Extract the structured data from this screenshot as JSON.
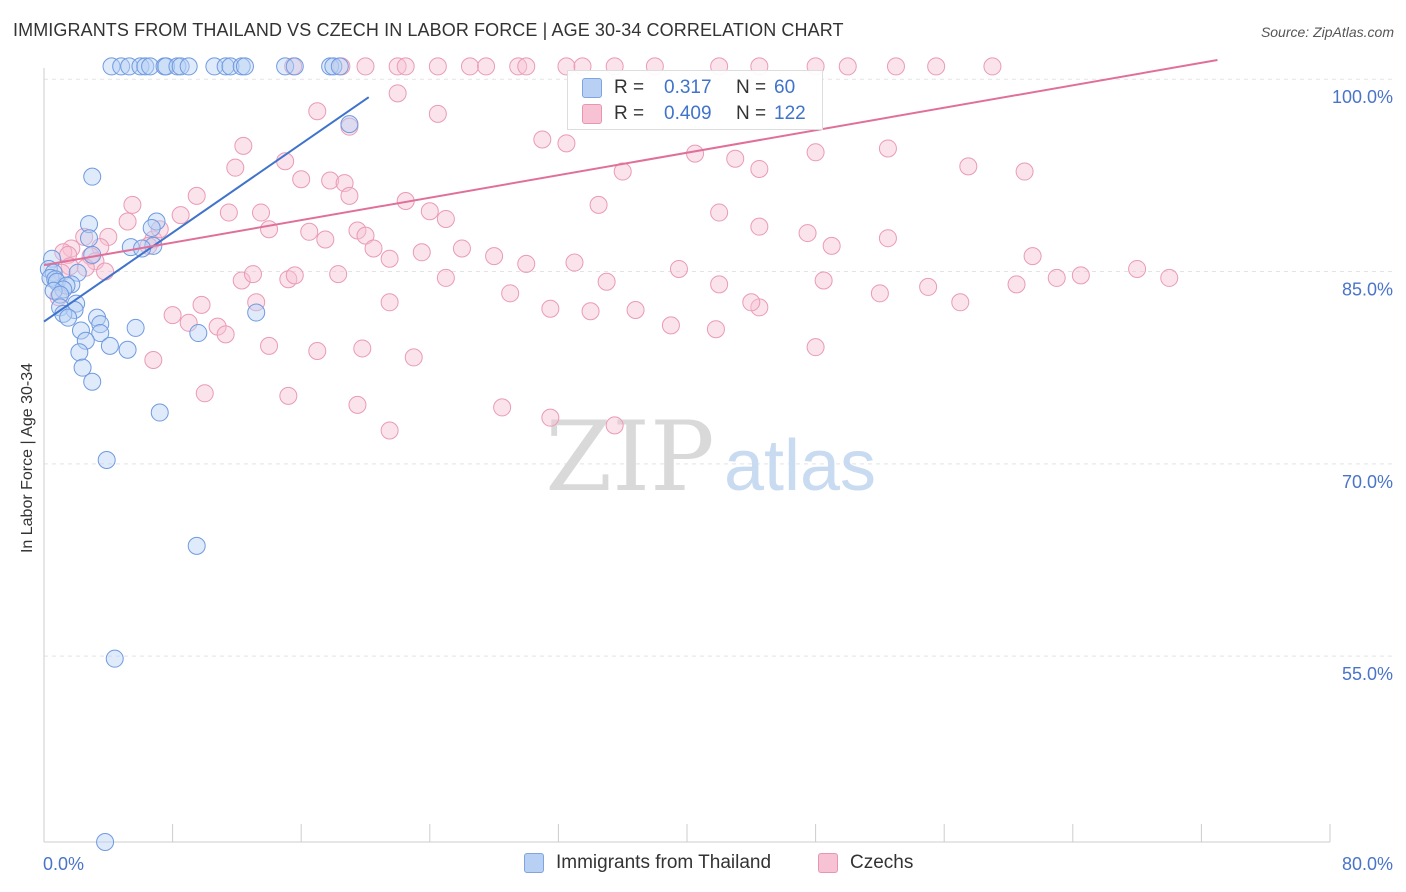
{
  "title": "IMMIGRANTS FROM THAILAND VS CZECH IN LABOR FORCE | AGE 30-34 CORRELATION CHART",
  "source": "Source: ZipAtlas.com",
  "watermark": {
    "zip": "ZIP",
    "atlas": "atlas"
  },
  "legend_top": {
    "rows": [
      {
        "r_label": "R =",
        "r_value": "0.317",
        "n_label": "N =",
        "n_value": "60"
      },
      {
        "r_label": "R =",
        "r_value": "0.409",
        "n_label": "N =",
        "n_value": "122"
      }
    ]
  },
  "legend_bottom": {
    "items": [
      "Immigrants from Thailand",
      "Czechs"
    ]
  },
  "chart_data": {
    "type": "scatter",
    "title": "IMMIGRANTS FROM THAILAND VS CZECH IN LABOR FORCE | AGE 30-34 CORRELATION CHART",
    "xlabel": "",
    "ylabel": "In Labor Force | Age 30-34",
    "xlim": [
      0,
      80
    ],
    "ylim": [
      40.5,
      101.5
    ],
    "x_tick_labels": [
      {
        "value": 0,
        "label": "0.0%"
      },
      {
        "value": 80,
        "label": "80.0%"
      }
    ],
    "y_tick_labels": [
      {
        "value": 100,
        "label": "100.0%"
      },
      {
        "value": 85,
        "label": "85.0%"
      },
      {
        "value": 70,
        "label": "70.0%"
      },
      {
        "value": 55,
        "label": "55.0%"
      }
    ],
    "colors": {
      "blue": "#3f73cc",
      "pink": "#e0709a",
      "blue_fill": "#b8d0f4",
      "pink_fill": "#f7c2d4",
      "grid": "#e3e3e3",
      "axis_text": "#4a74c8"
    },
    "series": [
      {
        "name": "Immigrants from Thailand",
        "color": "blue",
        "R": 0.317,
        "N": 60,
        "trend": {
          "x": [
            0,
            20.2
          ],
          "y": [
            81.1,
            98.6
          ]
        },
        "points": [
          [
            4.2,
            101
          ],
          [
            4.8,
            101
          ],
          [
            5.3,
            101
          ],
          [
            6.0,
            101
          ],
          [
            6.3,
            101
          ],
          [
            6.6,
            101
          ],
          [
            7.5,
            101
          ],
          [
            7.6,
            101
          ],
          [
            8.3,
            101
          ],
          [
            8.5,
            101
          ],
          [
            9.0,
            101
          ],
          [
            10.6,
            101
          ],
          [
            11.3,
            101
          ],
          [
            11.6,
            101
          ],
          [
            12.3,
            101
          ],
          [
            12.5,
            101
          ],
          [
            15.0,
            101
          ],
          [
            15.6,
            101
          ],
          [
            17.8,
            101
          ],
          [
            18.0,
            101
          ],
          [
            18.4,
            101
          ],
          [
            19.0,
            96.5
          ],
          [
            3.0,
            92.4
          ],
          [
            7.0,
            88.9
          ],
          [
            2.8,
            88.7
          ],
          [
            6.7,
            88.4
          ],
          [
            2.8,
            87.6
          ],
          [
            6.8,
            87.0
          ],
          [
            5.4,
            86.9
          ],
          [
            6.1,
            86.8
          ],
          [
            3.0,
            86.3
          ],
          [
            0.5,
            86.0
          ],
          [
            0.3,
            85.2
          ],
          [
            0.6,
            84.9
          ],
          [
            2.1,
            84.9
          ],
          [
            0.4,
            84.5
          ],
          [
            0.7,
            84.4
          ],
          [
            0.8,
            84.2
          ],
          [
            1.7,
            84.0
          ],
          [
            1.4,
            83.9
          ],
          [
            1.2,
            83.6
          ],
          [
            0.6,
            83.5
          ],
          [
            1.0,
            83.2
          ],
          [
            2.0,
            82.5
          ],
          [
            1.0,
            82.2
          ],
          [
            1.9,
            82.0
          ],
          [
            1.2,
            81.7
          ],
          [
            13.2,
            81.8
          ],
          [
            1.5,
            81.4
          ],
          [
            3.3,
            81.4
          ],
          [
            3.5,
            80.9
          ],
          [
            5.7,
            80.6
          ],
          [
            2.3,
            80.4
          ],
          [
            3.5,
            80.2
          ],
          [
            9.6,
            80.2
          ],
          [
            2.6,
            79.6
          ],
          [
            4.1,
            79.2
          ],
          [
            5.2,
            78.9
          ],
          [
            2.2,
            78.7
          ],
          [
            2.4,
            77.5
          ],
          [
            3.0,
            76.4
          ],
          [
            7.2,
            74.0
          ],
          [
            3.9,
            70.3
          ],
          [
            9.5,
            63.6
          ],
          [
            4.4,
            54.8
          ],
          [
            3.8,
            40.5
          ]
        ]
      },
      {
        "name": "Czechs",
        "color": "pink",
        "R": 0.409,
        "N": 122,
        "trend": {
          "x": [
            0,
            73
          ],
          "y": [
            85.5,
            101.5
          ]
        },
        "points": [
          [
            15.5,
            101
          ],
          [
            18.5,
            101
          ],
          [
            20.0,
            101
          ],
          [
            22.0,
            101
          ],
          [
            22.5,
            101
          ],
          [
            24.5,
            101
          ],
          [
            26.5,
            101
          ],
          [
            27.5,
            101
          ],
          [
            29.5,
            101
          ],
          [
            30.0,
            101
          ],
          [
            32.5,
            101
          ],
          [
            33.5,
            101
          ],
          [
            35.5,
            101
          ],
          [
            38.0,
            101
          ],
          [
            42.0,
            101
          ],
          [
            44.5,
            101
          ],
          [
            48.0,
            101
          ],
          [
            50.0,
            101
          ],
          [
            53.0,
            101
          ],
          [
            55.5,
            101
          ],
          [
            59.0,
            101
          ],
          [
            22.0,
            98.9
          ],
          [
            17.0,
            97.5
          ],
          [
            24.5,
            97.3
          ],
          [
            19.0,
            96.3
          ],
          [
            32.5,
            95.0
          ],
          [
            31.0,
            95.3
          ],
          [
            12.4,
            94.8
          ],
          [
            48.0,
            94.3
          ],
          [
            40.5,
            94.2
          ],
          [
            43.0,
            93.8
          ],
          [
            57.5,
            93.2
          ],
          [
            36.0,
            92.8
          ],
          [
            44.5,
            93.0
          ],
          [
            52.5,
            94.6
          ],
          [
            61.0,
            92.8
          ],
          [
            15.0,
            93.6
          ],
          [
            11.9,
            93.1
          ],
          [
            16.0,
            92.2
          ],
          [
            17.8,
            92.1
          ],
          [
            18.7,
            91.9
          ],
          [
            19.0,
            90.9
          ],
          [
            22.5,
            90.5
          ],
          [
            24.0,
            89.7
          ],
          [
            25.0,
            89.1
          ],
          [
            34.5,
            90.2
          ],
          [
            42.0,
            89.6
          ],
          [
            44.5,
            88.5
          ],
          [
            47.5,
            88.0
          ],
          [
            52.5,
            87.6
          ],
          [
            61.5,
            86.2
          ],
          [
            9.5,
            90.9
          ],
          [
            11.5,
            89.6
          ],
          [
            13.5,
            89.6
          ],
          [
            14.0,
            88.3
          ],
          [
            16.5,
            88.1
          ],
          [
            17.5,
            87.5
          ],
          [
            19.5,
            88.2
          ],
          [
            20.0,
            87.8
          ],
          [
            20.5,
            86.8
          ],
          [
            21.5,
            86.0
          ],
          [
            23.5,
            86.5
          ],
          [
            26.0,
            86.8
          ],
          [
            28.0,
            86.2
          ],
          [
            30.0,
            85.6
          ],
          [
            33.0,
            85.7
          ],
          [
            35.0,
            84.2
          ],
          [
            39.5,
            85.2
          ],
          [
            42.0,
            84.0
          ],
          [
            44.5,
            82.2
          ],
          [
            49.0,
            87.0
          ],
          [
            52.0,
            83.3
          ],
          [
            55.0,
            83.8
          ],
          [
            57.0,
            82.6
          ],
          [
            60.5,
            84.0
          ],
          [
            63.0,
            84.5
          ],
          [
            64.5,
            84.7
          ],
          [
            68.0,
            85.2
          ],
          [
            70.0,
            84.5
          ],
          [
            5.5,
            90.2
          ],
          [
            5.2,
            88.9
          ],
          [
            6.8,
            87.5
          ],
          [
            7.2,
            88.3
          ],
          [
            8.5,
            89.4
          ],
          [
            6.5,
            87.0
          ],
          [
            4.0,
            87.7
          ],
          [
            3.5,
            86.9
          ],
          [
            2.9,
            86.2
          ],
          [
            3.2,
            85.8
          ],
          [
            1.7,
            86.8
          ],
          [
            2.5,
            87.7
          ],
          [
            1.2,
            86.5
          ],
          [
            1.5,
            86.3
          ],
          [
            1.6,
            85.4
          ],
          [
            1.1,
            84.9
          ],
          [
            0.9,
            83.0
          ],
          [
            2.6,
            85.3
          ],
          [
            3.8,
            85.0
          ],
          [
            9.8,
            82.4
          ],
          [
            12.3,
            84.3
          ],
          [
            13.0,
            84.8
          ],
          [
            13.2,
            82.6
          ],
          [
            15.2,
            84.4
          ],
          [
            15.6,
            84.7
          ],
          [
            18.3,
            84.8
          ],
          [
            21.5,
            82.6
          ],
          [
            25.0,
            84.5
          ],
          [
            29.0,
            83.3
          ],
          [
            31.5,
            82.1
          ],
          [
            34.0,
            81.9
          ],
          [
            36.8,
            82.0
          ],
          [
            39.0,
            80.8
          ],
          [
            44.0,
            82.6
          ],
          [
            48.5,
            84.3
          ],
          [
            8.0,
            81.6
          ],
          [
            9.0,
            81.0
          ],
          [
            10.8,
            80.7
          ],
          [
            11.3,
            80.1
          ],
          [
            14.0,
            79.2
          ],
          [
            17.0,
            78.8
          ],
          [
            19.8,
            79.0
          ],
          [
            23.0,
            78.3
          ],
          [
            6.8,
            78.1
          ],
          [
            10.0,
            75.5
          ],
          [
            15.2,
            75.3
          ],
          [
            19.5,
            74.6
          ],
          [
            21.5,
            72.6
          ],
          [
            28.5,
            74.4
          ],
          [
            31.5,
            73.6
          ],
          [
            35.5,
            73.0
          ],
          [
            41.8,
            80.5
          ],
          [
            48.0,
            79.1
          ]
        ]
      }
    ]
  }
}
